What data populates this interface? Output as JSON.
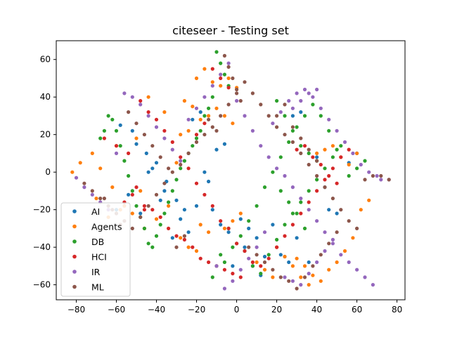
{
  "chart_data": {
    "type": "scatter",
    "title": "citeseer - Testing set",
    "xlabel": "",
    "ylabel": "",
    "xlim": [
      -90,
      84
    ],
    "ylim": [
      -68,
      70
    ],
    "xticks": [
      -80,
      -60,
      -40,
      -20,
      0,
      20,
      40,
      60,
      80
    ],
    "yticks": [
      -60,
      -40,
      -20,
      0,
      20,
      40,
      60
    ],
    "grid": false,
    "legend_position": "lower left",
    "series": [
      {
        "name": "AI",
        "color": "#1f77b4",
        "x": [
          -58,
          -52,
          -45,
          -40,
          -35,
          -30,
          -22,
          -18,
          -12,
          -8,
          -4,
          2,
          6,
          10,
          -48,
          -44,
          -36,
          -28,
          -24,
          -16,
          -10,
          -6,
          4,
          14,
          24,
          26,
          28,
          32,
          40,
          44,
          50,
          56,
          -60,
          -54,
          -38,
          -32,
          -14,
          -2,
          8,
          18,
          30,
          36,
          46,
          60,
          -50,
          -42,
          -26,
          -20,
          12,
          22
        ],
        "y": [
          25,
          22,
          10,
          5,
          -5,
          -15,
          28,
          32,
          -20,
          -28,
          -32,
          -25,
          -30,
          -35,
          -22,
          0,
          -10,
          -25,
          -32,
          0,
          12,
          15,
          -40,
          -45,
          -45,
          -48,
          30,
          32,
          8,
          -8,
          -22,
          5,
          -20,
          -12,
          -15,
          -35,
          -5,
          -50,
          -50,
          -28,
          -35,
          -48,
          -20,
          10,
          15,
          2,
          -20,
          -18,
          -55,
          -44
        ]
      },
      {
        "name": "Agents",
        "color": "#ff7f0e",
        "x": [
          -82,
          -78,
          -72,
          -68,
          -62,
          -58,
          -52,
          -46,
          -40,
          -34,
          -28,
          -24,
          -20,
          -16,
          -12,
          -8,
          -4,
          0,
          -26,
          -22,
          -18,
          -14,
          -10,
          -6,
          -2,
          -30,
          -44,
          -36,
          -48,
          -56,
          -64,
          -70,
          -60,
          -50,
          30,
          34,
          38,
          42,
          46,
          50,
          54,
          58,
          62,
          66,
          40,
          44,
          48,
          52,
          56,
          60,
          20,
          24,
          28,
          32,
          36,
          -18,
          -14,
          -24,
          -20,
          -28,
          10,
          14,
          18,
          -6,
          -2,
          2
        ],
        "y": [
          0,
          5,
          10,
          2,
          -8,
          -20,
          -22,
          -30,
          -25,
          -18,
          20,
          22,
          50,
          55,
          48,
          46,
          50,
          45,
          38,
          35,
          28,
          30,
          34,
          30,
          26,
          5,
          40,
          32,
          -10,
          -18,
          -24,
          -14,
          14,
          18,
          -46,
          -50,
          -55,
          -58,
          -52,
          -48,
          -42,
          -35,
          -20,
          -15,
          10,
          12,
          14,
          8,
          4,
          10,
          -40,
          -45,
          -50,
          -56,
          -60,
          -28,
          -32,
          -40,
          -42,
          -35,
          -48,
          -52,
          -56,
          -30,
          -26,
          -22
        ]
      },
      {
        "name": "DB",
        "color": "#2ca02c",
        "x": [
          -10,
          -8,
          -6,
          -4,
          -12,
          -14,
          -16,
          -18,
          -20,
          -22,
          -24,
          -26,
          -28,
          -30,
          -32,
          -34,
          -36,
          -38,
          -40,
          -42,
          -44,
          -46,
          -48,
          -50,
          -52,
          -54,
          -56,
          -58,
          -60,
          -62,
          -64,
          -66,
          -68,
          -4,
          0,
          4,
          8,
          12,
          16,
          20,
          24,
          28,
          32,
          36,
          40,
          44,
          48,
          52,
          56,
          60,
          64,
          -8,
          -10,
          -12,
          -6,
          -2,
          2,
          6,
          10,
          14,
          18,
          22,
          26,
          30,
          34,
          38,
          42,
          46,
          50,
          20,
          24,
          28,
          32,
          36,
          40,
          22,
          26,
          30,
          34
        ],
        "y": [
          64,
          58,
          52,
          46,
          40,
          34,
          30,
          22,
          18,
          14,
          10,
          6,
          2,
          -4,
          -10,
          -16,
          -22,
          -28,
          -34,
          -40,
          -38,
          -30,
          -24,
          -18,
          -10,
          -2,
          6,
          14,
          22,
          28,
          30,
          22,
          18,
          -30,
          -38,
          -42,
          -50,
          -54,
          -44,
          -36,
          -28,
          -22,
          -16,
          -10,
          -4,
          2,
          8,
          14,
          -2,
          2,
          6,
          -44,
          -50,
          -56,
          -48,
          -40,
          -34,
          -26,
          -18,
          -8,
          0,
          8,
          16,
          24,
          30,
          36,
          30,
          22,
          12,
          38,
          30,
          22,
          14,
          10,
          6,
          -10,
          -16,
          -22,
          -30
        ]
      },
      {
        "name": "HCI",
        "color": "#d62728",
        "x": [
          -66,
          -60,
          -54,
          -50,
          -46,
          -42,
          -38,
          -34,
          -30,
          -26,
          -22,
          -18,
          -14,
          -10,
          -6,
          -2,
          2,
          -48,
          -44,
          -40,
          -36,
          -32,
          -28,
          -24,
          -20,
          -16,
          -12,
          -8,
          -4,
          0,
          4,
          8,
          12,
          16,
          20,
          24,
          28,
          32,
          36,
          40,
          44,
          48,
          52,
          56,
          -12,
          -8,
          -4,
          -52,
          -56,
          -46,
          30,
          34,
          38,
          42,
          46,
          50,
          -20,
          -16
        ],
        "y": [
          18,
          14,
          10,
          -8,
          -18,
          -20,
          -24,
          -30,
          -34,
          -36,
          -40,
          -46,
          -48,
          -50,
          -52,
          -54,
          -56,
          38,
          32,
          28,
          22,
          16,
          8,
          2,
          -6,
          -12,
          -18,
          -26,
          -30,
          -38,
          -42,
          -48,
          -50,
          -46,
          -40,
          -34,
          -28,
          -22,
          -16,
          -10,
          -4,
          2,
          8,
          12,
          55,
          50,
          45,
          -12,
          -16,
          -20,
          12,
          14,
          8,
          4,
          -2,
          -6,
          20,
          26
        ]
      },
      {
        "name": "IR",
        "color": "#9467bd",
        "x": [
          -80,
          -76,
          -72,
          -68,
          -64,
          -60,
          -56,
          -52,
          -48,
          -44,
          -40,
          -36,
          -32,
          -28,
          -24,
          -20,
          -16,
          -12,
          -8,
          -4,
          0,
          4,
          8,
          12,
          16,
          20,
          24,
          28,
          32,
          36,
          40,
          44,
          48,
          52,
          56,
          60,
          64,
          68,
          72,
          76,
          70,
          66,
          62,
          58,
          54,
          50,
          46,
          42,
          38,
          34,
          30,
          26,
          22,
          18,
          14,
          10,
          6,
          2,
          -2,
          -6,
          -10,
          24,
          28,
          32,
          36,
          40,
          44,
          48,
          40,
          36,
          32,
          28
        ],
        "y": [
          -3,
          -8,
          -12,
          -16,
          -20,
          10,
          42,
          40,
          36,
          30,
          24,
          18,
          12,
          6,
          28,
          34,
          40,
          46,
          52,
          58,
          38,
          30,
          22,
          14,
          8,
          2,
          -2,
          -8,
          -14,
          -20,
          -26,
          -32,
          -38,
          -44,
          -48,
          -52,
          -56,
          -60,
          -4,
          -4,
          -2,
          0,
          4,
          10,
          16,
          22,
          28,
          34,
          40,
          44,
          42,
          38,
          32,
          26,
          -32,
          -40,
          -46,
          -52,
          -58,
          -62,
          -50,
          -56,
          -58,
          -60,
          -54,
          -48,
          -42,
          -36,
          44,
          42,
          38,
          34
        ]
      },
      {
        "name": "ML",
        "color": "#8c564b",
        "x": [
          -76,
          -72,
          -68,
          -64,
          -60,
          -56,
          -52,
          -48,
          -44,
          -40,
          -36,
          -32,
          -28,
          -24,
          -20,
          -16,
          -12,
          -8,
          -4,
          0,
          4,
          8,
          12,
          16,
          20,
          24,
          28,
          32,
          36,
          40,
          44,
          48,
          52,
          56,
          60,
          64,
          68,
          72,
          76,
          -6,
          -4,
          -2,
          0,
          2,
          -14,
          -10,
          6,
          10,
          14,
          18,
          22,
          26,
          30,
          34,
          38,
          42,
          46,
          50,
          -30,
          -26,
          -34,
          -38,
          -42,
          -46,
          -50,
          -54,
          -58,
          -62,
          -66,
          24,
          20,
          28,
          32,
          36,
          40
        ],
        "y": [
          -6,
          -10,
          -14,
          -18,
          -22,
          -26,
          -30,
          -24,
          -18,
          -12,
          -6,
          0,
          4,
          10,
          16,
          20,
          24,
          30,
          36,
          42,
          48,
          42,
          36,
          30,
          24,
          20,
          16,
          10,
          4,
          -2,
          -8,
          -14,
          -20,
          -26,
          -30,
          -4,
          -2,
          -2,
          -4,
          62,
          56,
          50,
          44,
          38,
          28,
          22,
          -40,
          -44,
          -48,
          -52,
          -56,
          -58,
          -62,
          -56,
          -50,
          -44,
          -38,
          -32,
          -40,
          -34,
          2,
          8,
          14,
          20,
          26,
          32,
          -28,
          -20,
          -14,
          36,
          30,
          24,
          18,
          12,
          6
        ]
      }
    ]
  }
}
